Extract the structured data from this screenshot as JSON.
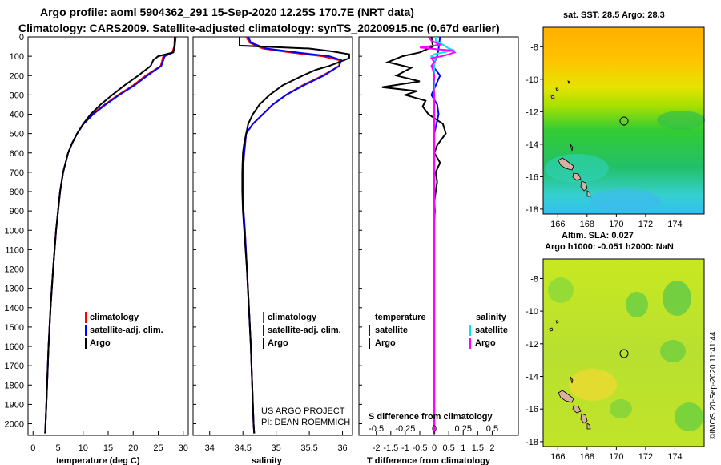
{
  "header": {
    "line1": "Argo profile: aoml 5904362_291 15-Sep-2020 12.25S 170.7E (NRT data)",
    "line2": "Climatology: CARS2009. Satellite-adjusted climatology: synTS_20200915.nc (0.67d earlier)"
  },
  "colors": {
    "climatology": "#ff0000",
    "satellite": "#0000ff",
    "argo": "#000000",
    "s_satellite": "#00e5ee",
    "s_argo": "#ff00ff"
  },
  "chart_data": [
    {
      "type": "line",
      "panel": "temperature",
      "xlabel": "temperature (deg C)",
      "ylabel": "depth",
      "xlim": [
        -1,
        31
      ],
      "ylim": [
        2060,
        0
      ],
      "xticks": [
        "0",
        "5",
        "10",
        "15",
        "20",
        "25",
        "30"
      ],
      "yticks": [
        "0",
        "100",
        "200",
        "300",
        "400",
        "500",
        "600",
        "700",
        "800",
        "900",
        "1000",
        "1100",
        "1200",
        "1300",
        "1400",
        "1500",
        "1600",
        "1700",
        "1800",
        "1900",
        "2000"
      ],
      "legend": [
        "climatology",
        "satellite-adj. clim.",
        "Argo"
      ],
      "series": [
        {
          "name": "climatology",
          "depth": [
            0,
            50,
            80,
            100,
            150,
            200,
            250,
            300,
            350,
            400,
            450,
            500,
            550,
            600,
            700,
            800,
            900,
            1000,
            1200,
            1400,
            1600,
            1800,
            2000,
            2050
          ],
          "values": [
            28.3,
            28.2,
            27.8,
            26.0,
            25.5,
            22.5,
            20.0,
            17.0,
            14.3,
            11.8,
            10.0,
            8.8,
            7.8,
            7.0,
            6.0,
            5.4,
            5.0,
            4.6,
            4.0,
            3.5,
            3.1,
            2.8,
            2.5,
            2.4
          ]
        },
        {
          "name": "satellite-adj. clim.",
          "depth": [
            0,
            50,
            80,
            100,
            150,
            200,
            250,
            300,
            350,
            400,
            450,
            500,
            550,
            600,
            700,
            800,
            900,
            1000,
            1200,
            1400,
            1600,
            1800,
            2000,
            2050
          ],
          "values": [
            28.5,
            28.3,
            28.0,
            26.3,
            25.6,
            22.8,
            20.3,
            17.2,
            14.5,
            12.0,
            10.1,
            8.8,
            7.8,
            7.0,
            6.0,
            5.4,
            5.0,
            4.6,
            4.0,
            3.5,
            3.1,
            2.8,
            2.5,
            2.4
          ]
        },
        {
          "name": "Argo",
          "depth": [
            0,
            40,
            80,
            100,
            120,
            150,
            200,
            250,
            300,
            350,
            400,
            450,
            500,
            550,
            600,
            700,
            800,
            900,
            1000,
            1200,
            1400,
            1600,
            1800,
            2000,
            2050
          ],
          "values": [
            28.3,
            28.3,
            28.0,
            25.0,
            24.0,
            23.5,
            21.0,
            18.3,
            15.8,
            13.5,
            11.5,
            10.0,
            8.8,
            7.8,
            7.0,
            6.0,
            5.4,
            5.0,
            4.6,
            4.0,
            3.5,
            3.1,
            2.8,
            2.5,
            2.4
          ]
        }
      ]
    },
    {
      "type": "line",
      "panel": "salinity",
      "xlabel": "salinity",
      "ylabel": "depth",
      "xlim": [
        33.75,
        36.15
      ],
      "ylim": [
        2060,
        0
      ],
      "xticks": [
        "34",
        "34.5",
        "35",
        "35.5",
        "36"
      ],
      "legend": [
        "climatology",
        "satellite-adj. clim.",
        "Argo"
      ],
      "annotation": [
        "US ARGO PROJECT",
        "PI: DEAN ROEMMICH"
      ],
      "series": [
        {
          "name": "climatology",
          "depth": [
            0,
            30,
            60,
            80,
            100,
            120,
            150,
            200,
            250,
            300,
            350,
            400,
            450,
            500,
            600,
            700,
            800,
            900,
            1000,
            1200,
            1400,
            1600,
            1800,
            2000,
            2050
          ],
          "values": [
            34.55,
            34.6,
            34.8,
            35.2,
            35.7,
            35.95,
            35.95,
            35.7,
            35.4,
            35.15,
            34.95,
            34.8,
            34.65,
            34.55,
            34.52,
            34.5,
            34.5,
            34.51,
            34.53,
            34.56,
            34.59,
            34.62,
            34.64,
            34.66,
            34.67
          ]
        },
        {
          "name": "satellite-adj. clim.",
          "depth": [
            0,
            30,
            60,
            80,
            100,
            120,
            150,
            200,
            250,
            300,
            350,
            400,
            450,
            500,
            600,
            700,
            800,
            900,
            1000,
            1200,
            1400,
            1600,
            1800,
            2000,
            2050
          ],
          "values": [
            34.58,
            34.62,
            34.85,
            35.3,
            35.8,
            35.98,
            35.95,
            35.72,
            35.42,
            35.15,
            34.95,
            34.8,
            34.65,
            34.55,
            34.52,
            34.5,
            34.5,
            34.51,
            34.53,
            34.56,
            34.59,
            34.62,
            34.64,
            34.66,
            34.67
          ]
        },
        {
          "name": "Argo",
          "depth": [
            0,
            15,
            30,
            45,
            60,
            75,
            90,
            110,
            130,
            150,
            170,
            200,
            250,
            300,
            350,
            400,
            450,
            500,
            550,
            600,
            700,
            800,
            900,
            1000,
            1200,
            1400,
            1600,
            1800,
            2000,
            2050
          ],
          "values": [
            34.45,
            34.45,
            34.45,
            34.45,
            35.5,
            35.85,
            36.1,
            36.1,
            35.95,
            35.8,
            35.6,
            35.4,
            35.1,
            34.9,
            34.75,
            34.65,
            34.58,
            34.55,
            34.52,
            34.5,
            34.49,
            34.49,
            34.5,
            34.52,
            34.56,
            34.59,
            34.62,
            34.64,
            34.66,
            34.67
          ]
        }
      ]
    },
    {
      "type": "line",
      "panel": "difference",
      "xlabel": "T difference from climatology",
      "xlabel2": "S difference from climatology",
      "xlim": [
        -2.6,
        2.9
      ],
      "ylim": [
        2060,
        0
      ],
      "xticks": [
        "-2",
        "-1.5",
        "-1",
        "-0.5",
        "0",
        "0.5",
        "1",
        "1.5",
        "2"
      ],
      "xticks_salinity": [
        "-0.5",
        "-0.25",
        "0",
        "0.25",
        "0.5"
      ],
      "legend": {
        "temperature_header": "temperature",
        "salinity_header": "salinity",
        "t_satellite": "satellite",
        "t_argo": "Argo",
        "s_satellite": "satellite",
        "s_argo": "Argo"
      },
      "series": [
        {
          "name": "T satellite",
          "depth": [
            0,
            60,
            100,
            150,
            200,
            250,
            300,
            350,
            400,
            500,
            600,
            800,
            1000,
            1500,
            2050
          ],
          "values": [
            0.2,
            0.15,
            0.1,
            -0.05,
            0.2,
            0.05,
            -0.1,
            0.1,
            0.15,
            0.0,
            0.0,
            0.0,
            0.0,
            0.0,
            0.0
          ]
        },
        {
          "name": "T Argo",
          "depth": [
            0,
            50,
            80,
            100,
            130,
            160,
            200,
            230,
            260,
            280,
            300,
            330,
            360,
            400,
            450,
            500,
            560,
            600,
            650,
            700,
            750,
            800,
            850,
            900,
            950,
            1000,
            1100,
            1200,
            1500,
            2050
          ],
          "values": [
            -0.1,
            -0.05,
            -0.5,
            -1.1,
            -1.6,
            -0.8,
            -1.3,
            -0.5,
            -1.8,
            -0.6,
            -1.0,
            -0.3,
            -0.4,
            -0.2,
            0.3,
            0.4,
            0.1,
            0.0,
            0.2,
            0.05,
            0.1,
            0.05,
            0.0,
            0.02,
            0.0,
            0.0,
            0.0,
            0.0,
            0.0,
            0.0
          ]
        },
        {
          "name": "S satellite",
          "depth": [
            0,
            20,
            40,
            60,
            70,
            80,
            90,
            100,
            110,
            130,
            150,
            200,
            300,
            400,
            600,
            800,
            1000,
            1500,
            2050
          ],
          "values": [
            0.05,
            0.05,
            0.3,
            0.5,
            0.7,
            0.3,
            0.0,
            -0.1,
            0.05,
            0.0,
            0.0,
            0.0,
            0.0,
            0.0,
            0.0,
            0.0,
            0.0,
            0.0,
            0.0
          ]
        },
        {
          "name": "S Argo",
          "depth": [
            0,
            20,
            40,
            55,
            65,
            70,
            80,
            90,
            100,
            110,
            120,
            130,
            150,
            170,
            200,
            250,
            300,
            400,
            500,
            600,
            800,
            1000,
            1500,
            2050
          ],
          "values": [
            -0.2,
            -0.1,
            0.2,
            -0.5,
            0.2,
            0.6,
            0.7,
            0.5,
            0.25,
            -0.1,
            -0.05,
            0.0,
            -0.1,
            -0.05,
            0.0,
            -0.02,
            0.0,
            0.0,
            0.0,
            0.0,
            0.0,
            0.0,
            0.0,
            0.0
          ]
        }
      ]
    },
    {
      "type": "heatmap",
      "panel": "sst-map",
      "title": "sat. SST: 28.5 Argo: 28.3",
      "xticks": [
        "166",
        "168",
        "170",
        "172",
        "174"
      ],
      "yticks": [
        "-8",
        "-10",
        "-12",
        "-14",
        "-16",
        "-18"
      ],
      "xlim": [
        165,
        176
      ],
      "ylim": [
        -18.3,
        -6.8
      ],
      "marker": {
        "lon": 170.7,
        "lat": -12.25
      }
    },
    {
      "type": "heatmap",
      "panel": "sla-map",
      "title_line1": "Altim. SLA: 0.027",
      "title_line2": "Argo h1000: -0.051 h2000: NaN",
      "xticks": [
        "166",
        "168",
        "170",
        "172",
        "174"
      ],
      "yticks": [
        "-8",
        "-10",
        "-12",
        "-14",
        "-16",
        "-18"
      ],
      "xlim": [
        165,
        176
      ],
      "ylim": [
        -18.3,
        -6.8
      ],
      "marker": {
        "lon": 170.7,
        "lat": -12.25
      }
    }
  ],
  "credit": "©IMOS 20-Sep-2020 11:41:44"
}
